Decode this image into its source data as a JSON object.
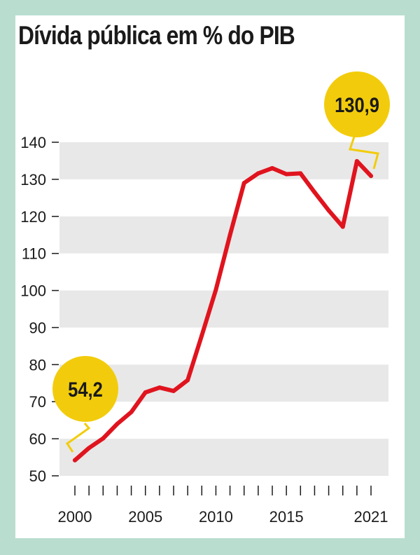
{
  "chart_data": {
    "type": "line",
    "title": "Dívida pública em % do PIB",
    "x": [
      2000,
      2001,
      2002,
      2003,
      2004,
      2005,
      2006,
      2007,
      2008,
      2009,
      2010,
      2011,
      2012,
      2013,
      2014,
      2015,
      2016,
      2017,
      2018,
      2019,
      2020,
      2021
    ],
    "series": [
      {
        "values": [
          54.2,
          57.5,
          60.1,
          64.0,
          67.2,
          72.5,
          73.8,
          72.9,
          75.8,
          87.9,
          100.2,
          115.0,
          129.0,
          131.6,
          133.0,
          131.4,
          131.6,
          126.5,
          121.6,
          117.2,
          134.9,
          130.9
        ]
      }
    ],
    "ylim": [
      50,
      140
    ],
    "yticks": [
      "50",
      "60",
      "70",
      "80",
      "90",
      "100",
      "110",
      "120",
      "130",
      "140"
    ],
    "xtick_labels": [
      "2000",
      "2005",
      "2010",
      "2015",
      "2021"
    ],
    "xtick_label_years": [
      2000,
      2005,
      2010,
      2015,
      2021
    ],
    "annotations": [
      {
        "year": 2000,
        "value": 54.2,
        "label": "54,2"
      },
      {
        "year": 2021,
        "value": 130.9,
        "label": "130,9"
      }
    ],
    "colors": {
      "line": "#e0141e",
      "band": "#e8e8e8",
      "bubble": "#f2cc0c",
      "background": "#b9ded0"
    }
  }
}
